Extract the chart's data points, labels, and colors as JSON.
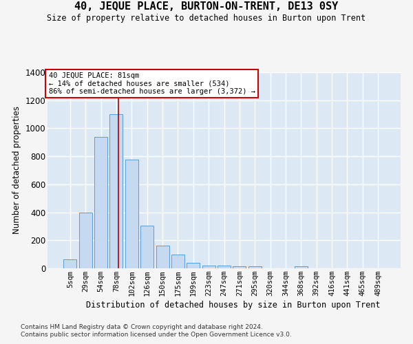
{
  "title": "40, JEQUE PLACE, BURTON-ON-TRENT, DE13 0SY",
  "subtitle": "Size of property relative to detached houses in Burton upon Trent",
  "xlabel": "Distribution of detached houses by size in Burton upon Trent",
  "ylabel": "Number of detached properties",
  "categories": [
    "5sqm",
    "29sqm",
    "54sqm",
    "78sqm",
    "102sqm",
    "126sqm",
    "150sqm",
    "175sqm",
    "199sqm",
    "223sqm",
    "247sqm",
    "271sqm",
    "295sqm",
    "320sqm",
    "344sqm",
    "368sqm",
    "392sqm",
    "416sqm",
    "441sqm",
    "465sqm",
    "489sqm"
  ],
  "values": [
    65,
    400,
    940,
    1100,
    775,
    305,
    160,
    97,
    37,
    20,
    18,
    15,
    15,
    0,
    0,
    15,
    0,
    0,
    0,
    0,
    0
  ],
  "bar_color": "#c5d9f0",
  "bar_edge_color": "#5b9bd5",
  "bg_color": "#dce9f5",
  "grid_color": "#ffffff",
  "annotation_line1": "40 JEQUE PLACE: 81sqm",
  "annotation_line2": "← 14% of detached houses are smaller (534)",
  "annotation_line3": "86% of semi-detached houses are larger (3,372) →",
  "annotation_box_color": "#ffffff",
  "annotation_box_edge": "#cc0000",
  "vline_color": "#aa0000",
  "vline_x": 3.15,
  "ylim": [
    0,
    1400
  ],
  "yticks": [
    0,
    200,
    400,
    600,
    800,
    1000,
    1200,
    1400
  ],
  "footer1": "Contains HM Land Registry data © Crown copyright and database right 2024.",
  "footer2": "Contains public sector information licensed under the Open Government Licence v3.0.",
  "fig_bg": "#f5f5f5"
}
